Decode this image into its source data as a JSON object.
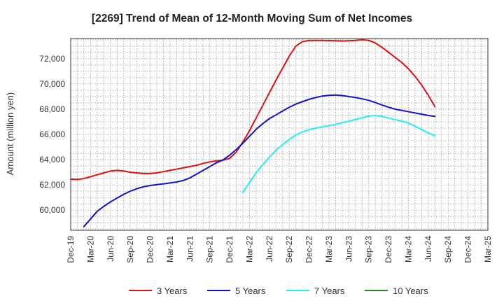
{
  "chart_data": {
    "type": "line",
    "title": "[2269]  Trend of Mean of 12-Month Moving Sum of Net Incomes",
    "ylabel": "Amount (million yen)",
    "xlabel": "",
    "ylim": [
      58400,
      73600
    ],
    "yticks": [
      60000,
      62000,
      64000,
      66000,
      68000,
      70000,
      72000
    ],
    "ytick_labels": [
      "60,000",
      "62,000",
      "64,000",
      "66,000",
      "68,000",
      "70,000",
      "72,000"
    ],
    "xtick_labels": [
      "Dec-19",
      "Mar-20",
      "Jun-20",
      "Sep-20",
      "Dec-20",
      "Mar-21",
      "Jun-21",
      "Sep-21",
      "Dec-21",
      "Mar-22",
      "Jun-22",
      "Sep-22",
      "Dec-22",
      "Mar-23",
      "Jun-23",
      "Sep-23",
      "Dec-23",
      "Mar-24",
      "Jun-24",
      "Sep-24",
      "Dec-24",
      "Mar-25"
    ],
    "x_start": "Dec-19",
    "x_end": "Mar-25",
    "grid": true,
    "legend_position": "bottom",
    "series": [
      {
        "name": "3 Years",
        "color": "#dd1111",
        "start": "Dec-19",
        "values": [
          62450,
          62430,
          62500,
          62650,
          62800,
          62950,
          63100,
          63150,
          63100,
          63000,
          62950,
          62900,
          62900,
          62950,
          63050,
          63150,
          63250,
          63350,
          63450,
          63550,
          63700,
          63820,
          63900,
          63950,
          64100,
          64600,
          65400,
          66300,
          67300,
          68300,
          69300,
          70300,
          71250,
          72200,
          73000,
          73350,
          73450,
          73450,
          73450,
          73430,
          73420,
          73400,
          73420,
          73450,
          73500,
          73450,
          73250,
          72900,
          72500,
          72100,
          71700,
          71200,
          70600,
          69900,
          69100,
          68200
        ]
      },
      {
        "name": "5 Years",
        "color": "#1111cc",
        "start": "Feb-20",
        "values": [
          58700,
          59300,
          59900,
          60300,
          60650,
          60950,
          61250,
          61500,
          61700,
          61850,
          61950,
          62020,
          62080,
          62150,
          62230,
          62350,
          62550,
          62850,
          63150,
          63450,
          63750,
          63980,
          64350,
          64800,
          65300,
          65850,
          66400,
          66850,
          67250,
          67550,
          67850,
          68150,
          68400,
          68600,
          68780,
          68920,
          69040,
          69100,
          69120,
          69080,
          69000,
          68920,
          68820,
          68700,
          68530,
          68330,
          68150,
          68000,
          67900,
          67800,
          67700,
          67600,
          67500,
          67430
        ]
      },
      {
        "name": "7 Years",
        "color": "#22eeee",
        "start": "Feb-22",
        "values": [
          61400,
          62200,
          62950,
          63600,
          64200,
          64750,
          65200,
          65600,
          65950,
          66200,
          66380,
          66500,
          66600,
          66700,
          66800,
          66920,
          67050,
          67180,
          67320,
          67450,
          67500,
          67430,
          67300,
          67170,
          67050,
          66900,
          66650,
          66380,
          66120,
          65900
        ]
      },
      {
        "name": "10 Years",
        "color": "#228822",
        "start": "Dec-19",
        "values": []
      }
    ]
  }
}
